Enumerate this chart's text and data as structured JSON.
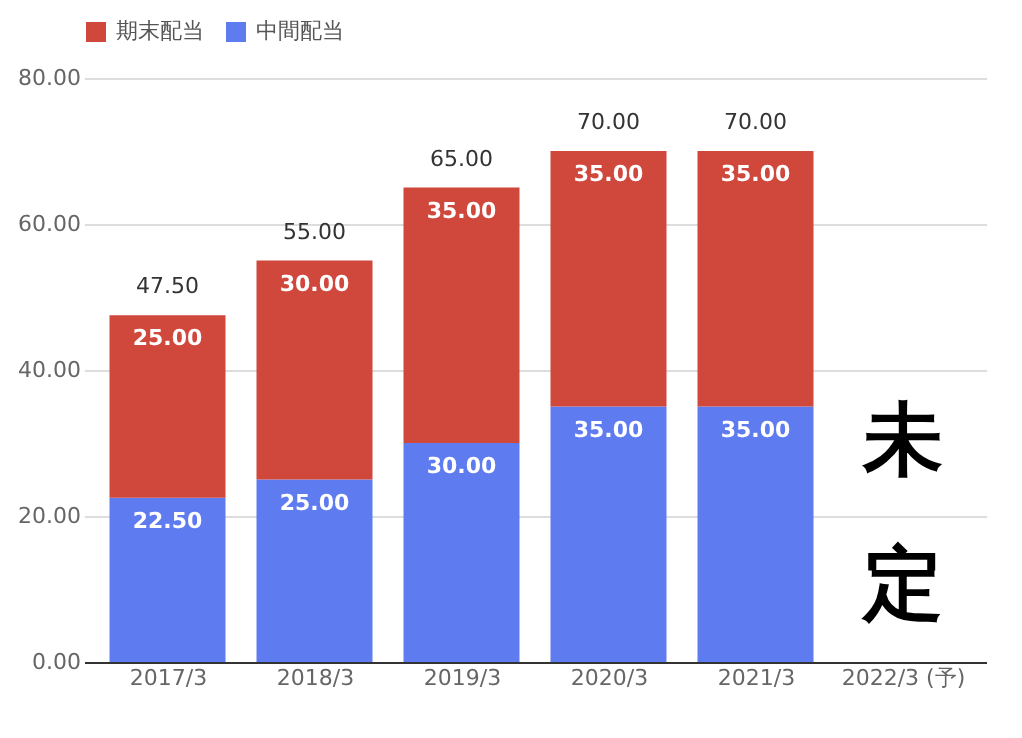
{
  "chart_data": {
    "type": "bar",
    "stacked": true,
    "categories": [
      "2017/3",
      "2018/3",
      "2019/3",
      "2020/3",
      "2021/3",
      "2022/3 (予)"
    ],
    "series": [
      {
        "name": "中間配当",
        "color": "#5f7bf0",
        "values": [
          22.5,
          25,
          30,
          35,
          35,
          null
        ]
      },
      {
        "name": "期末配当",
        "color": "#d0473c",
        "values": [
          25,
          30,
          35,
          35,
          35,
          null
        ]
      }
    ],
    "value_labels": [
      [
        "22.50",
        "25.00",
        "30.00",
        "35.00",
        "35.00",
        null
      ],
      [
        "25.00",
        "30.00",
        "35.00",
        "35.00",
        "35.00",
        null
      ]
    ],
    "totals": [
      "47.50",
      "55.00",
      "65.00",
      "70.00",
      "70.00",
      null
    ],
    "ylim": [
      0,
      80
    ],
    "yticks": [
      {
        "value": 0,
        "label": "0.00"
      },
      {
        "value": 20,
        "label": "20.00"
      },
      {
        "value": 40,
        "label": "40.00"
      },
      {
        "value": 60,
        "label": "60.00"
      },
      {
        "value": 80,
        "label": "80.00"
      }
    ],
    "grid": "y",
    "legend": "top",
    "annotations": [
      "未定"
    ]
  }
}
